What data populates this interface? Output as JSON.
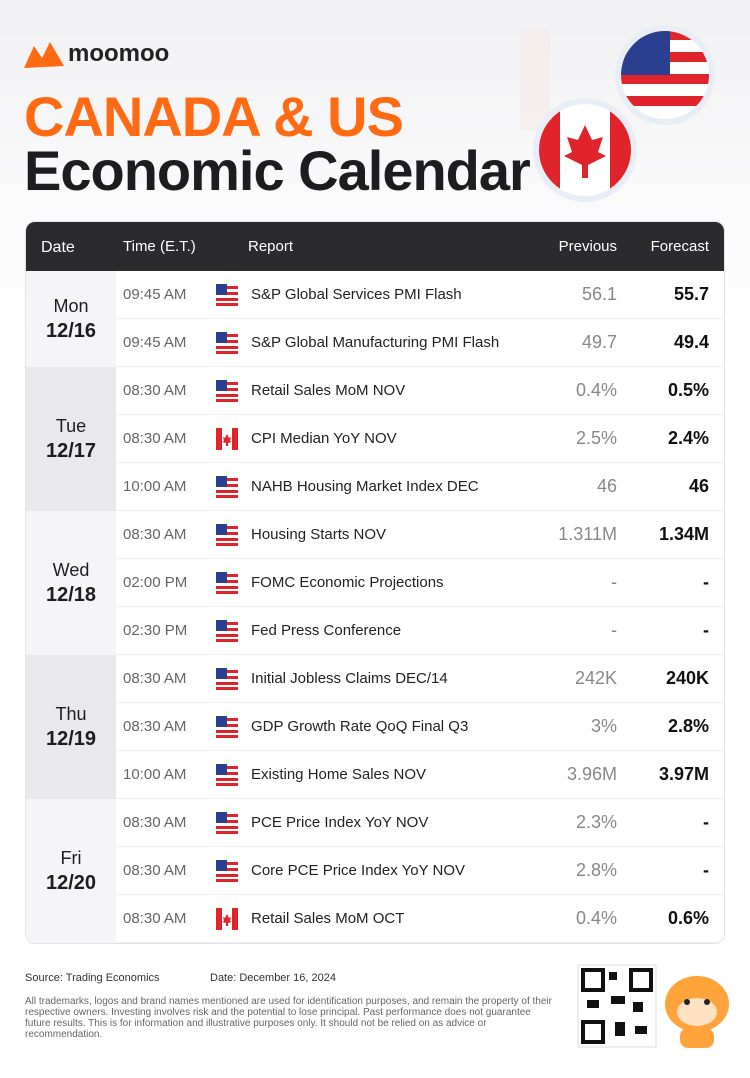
{
  "header": {
    "brand": "moomoo",
    "title_line1": "CANADA & US",
    "title_line2": "Economic Calendar"
  },
  "table": {
    "columns": [
      "Date",
      "Time (E.T.)",
      "Report",
      "Previous",
      "Forecast"
    ],
    "days": [
      {
        "day": "Mon",
        "date": "12/16",
        "events": [
          {
            "time": "09:45 AM",
            "flag": "us",
            "report": "S&P Global Services PMI Flash",
            "previous": "56.1",
            "forecast": "55.7"
          },
          {
            "time": "09:45 AM",
            "flag": "us",
            "report": "S&P Global Manufacturing PMI Flash",
            "previous": "49.7",
            "forecast": "49.4"
          }
        ]
      },
      {
        "day": "Tue",
        "date": "12/17",
        "events": [
          {
            "time": "08:30 AM",
            "flag": "us",
            "report": "Retail Sales MoM NOV",
            "previous": "0.4%",
            "forecast": "0.5%"
          },
          {
            "time": "08:30 AM",
            "flag": "ca",
            "report": "CPI Median YoY NOV",
            "previous": "2.5%",
            "forecast": "2.4%"
          },
          {
            "time": "10:00 AM",
            "flag": "us",
            "report": "NAHB Housing Market Index DEC",
            "previous": "46",
            "forecast": "46"
          }
        ]
      },
      {
        "day": "Wed",
        "date": "12/18",
        "events": [
          {
            "time": "08:30 AM",
            "flag": "us",
            "report": "Housing Starts NOV",
            "previous": "1.311M",
            "forecast": "1.34M"
          },
          {
            "time": "02:00 PM",
            "flag": "us",
            "report": "FOMC Economic Projections",
            "previous": "-",
            "forecast": "-"
          },
          {
            "time": "02:30 PM",
            "flag": "us",
            "report": "Fed Press Conference",
            "previous": "-",
            "forecast": "-"
          }
        ]
      },
      {
        "day": "Thu",
        "date": "12/19",
        "events": [
          {
            "time": "08:30 AM",
            "flag": "us",
            "report": "Initial Jobless Claims DEC/14",
            "previous": "242K",
            "forecast": "240K"
          },
          {
            "time": "08:30 AM",
            "flag": "us",
            "report": "GDP Growth Rate QoQ Final Q3",
            "previous": "3%",
            "forecast": "2.8%"
          },
          {
            "time": "10:00 AM",
            "flag": "us",
            "report": "Existing Home Sales NOV",
            "previous": "3.96M",
            "forecast": "3.97M"
          }
        ]
      },
      {
        "day": "Fri",
        "date": "12/20",
        "events": [
          {
            "time": "08:30 AM",
            "flag": "us",
            "report": "PCE Price Index YoY NOV",
            "previous": "2.3%",
            "forecast": "-"
          },
          {
            "time": "08:30 AM",
            "flag": "us",
            "report": "Core PCE Price Index YoY NOV",
            "previous": "2.8%",
            "forecast": "-"
          },
          {
            "time": "08:30 AM",
            "flag": "ca",
            "report": "Retail Sales MoM OCT",
            "previous": "0.4%",
            "forecast": "0.6%"
          }
        ]
      }
    ]
  },
  "footer": {
    "source": "Source: Trading Economics",
    "date": "Date: December 16, 2024",
    "disclaimer": "All trademarks, logos and brand names mentioned are used for identification purposes, and remain the property of their respective owners. Investing involves risk and the potential to lose principal. Past performance does not guarantee future results. This is for information and illustrative purposes only. It should not be relied on as advice or recommendation."
  }
}
